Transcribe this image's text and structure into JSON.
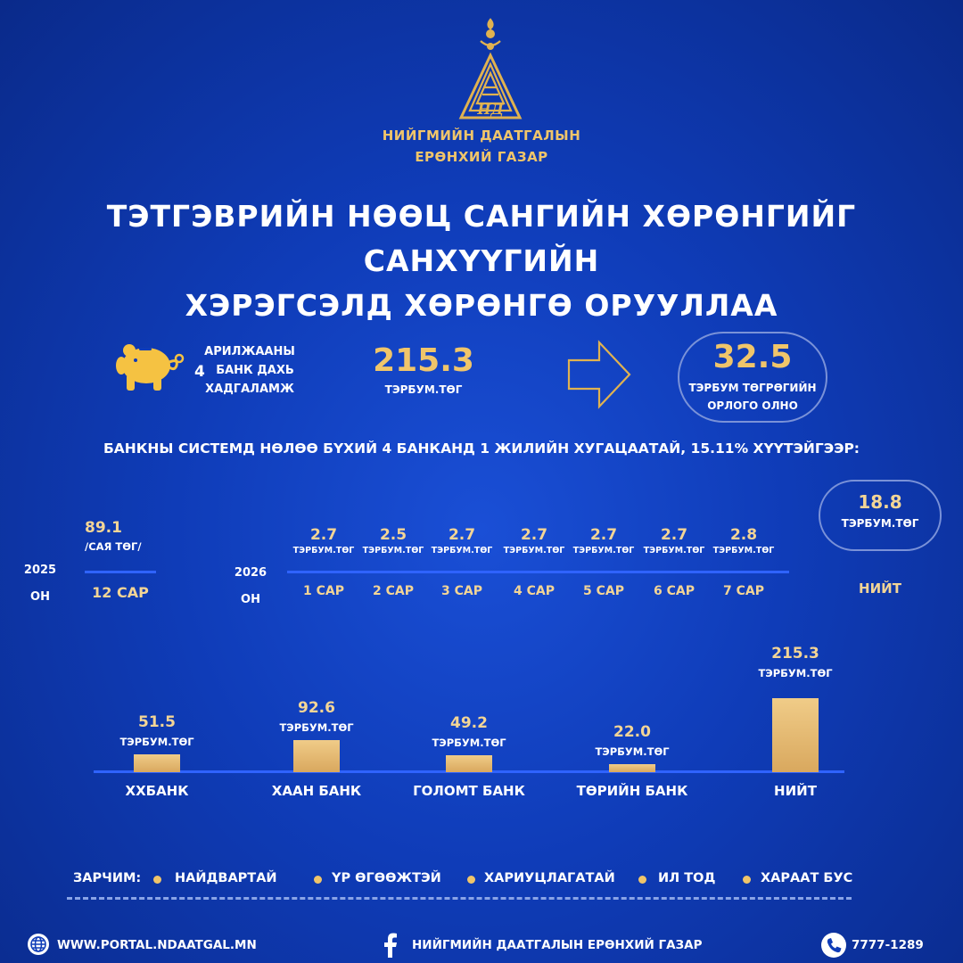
{
  "org": {
    "line1": "НИЙГМИЙН ДААТГАЛЫН",
    "line2": "ЕРӨНХИЙ ГАЗАР"
  },
  "title": {
    "line1": "ТЭТГЭВРИЙН НӨӨЦ САНГИЙН ХӨРӨНГИЙГ САНХҮҮГИЙН",
    "line2": "ХЭРЭГСЭЛД ХӨРӨНГӨ ОРУУЛЛАА"
  },
  "deposit": {
    "line1": "АРИЛЖААНЫ",
    "number": "4",
    "line2": "БАНК ДАХЬ",
    "line3": "ХАДГАЛАМЖ",
    "value": "215.3",
    "unit": "ТЭРБУМ.ТӨГ"
  },
  "income": {
    "value": "32.5",
    "line1": "ТЭРБУМ ТӨГРӨГИЙН",
    "line2": "ОРЛОГО ОЛНО"
  },
  "subtitle": "БАНКНЫ СИСТЕМД НӨЛӨӨ БҮХИЙ 4 БАНКАНД 1 ЖИЛИЙН ХУГАЦААТАЙ, 15.11% ХҮҮТЭЙГЭЭР:",
  "schedule": {
    "y2025": {
      "year": "2025",
      "suffix": "ОН",
      "value": "89.1",
      "unit": "/САЯ ТӨГ/",
      "month": "12 САР"
    },
    "y2026": {
      "year": "2026",
      "suffix": "ОН",
      "items": [
        {
          "value": "2.7",
          "unit": "ТЭРБУМ.ТӨГ",
          "month": "1 САР"
        },
        {
          "value": "2.5",
          "unit": "ТЭРБУМ.ТӨГ",
          "month": "2 САР"
        },
        {
          "value": "2.7",
          "unit": "ТЭРБУМ.ТӨГ",
          "month": "3 САР"
        },
        {
          "value": "2.7",
          "unit": "ТЭРБУМ.ТӨГ",
          "month": "4 САР"
        },
        {
          "value": "2.7",
          "unit": "ТЭРБУМ.ТӨГ",
          "month": "5 САР"
        },
        {
          "value": "2.7",
          "unit": "ТЭРБУМ.ТӨГ",
          "month": "6 САР"
        },
        {
          "value": "2.8",
          "unit": "ТЭРБУМ.ТӨГ",
          "month": "7 САР"
        }
      ]
    },
    "total": {
      "value": "18.8",
      "unit": "ТЭРБУМ.ТӨГ",
      "label": "НИЙТ"
    }
  },
  "chart_data": {
    "type": "bar",
    "categories": [
      "ХХБАНК",
      "ХААН БАНК",
      "ГОЛОМТ БАНК",
      "ТӨРИЙН БАНК",
      "НИЙТ"
    ],
    "values": [
      51.5,
      92.6,
      49.2,
      22.0,
      215.3
    ],
    "value_labels": [
      "51.5",
      "92.6",
      "49.2",
      "22.0",
      "215.3"
    ],
    "unit": "ТЭРБУМ.ТӨГ",
    "title": "",
    "xlabel": "",
    "ylabel": "",
    "grid": false,
    "legend": "none",
    "bar_color": "#e3b56f"
  },
  "principles": {
    "label": "ЗАРЧИМ:",
    "items": [
      "НАЙДВАРТАЙ",
      "ҮР ӨГӨӨЖТЭЙ",
      "ХАРИУЦЛАГАТАЙ",
      "ИЛ ТОД",
      "ХАРААТ БУС"
    ]
  },
  "footer": {
    "website": "WWW.PORTAL.NDAATGAL.MN",
    "facebook": "НИЙГМИЙН ДААТГАЛЫН ЕРӨНХИЙ ГАЗАР",
    "phone": "7777-1289"
  },
  "icons": [
    "logo-emblem",
    "piggy-bank-icon",
    "arrow-right-icon",
    "globe-icon",
    "facebook-icon",
    "phone-icon"
  ],
  "colors": {
    "gold": "#f0c56a",
    "background": "#0f3cb8",
    "line": "#2f63ff",
    "bar": "#e3b56f"
  }
}
